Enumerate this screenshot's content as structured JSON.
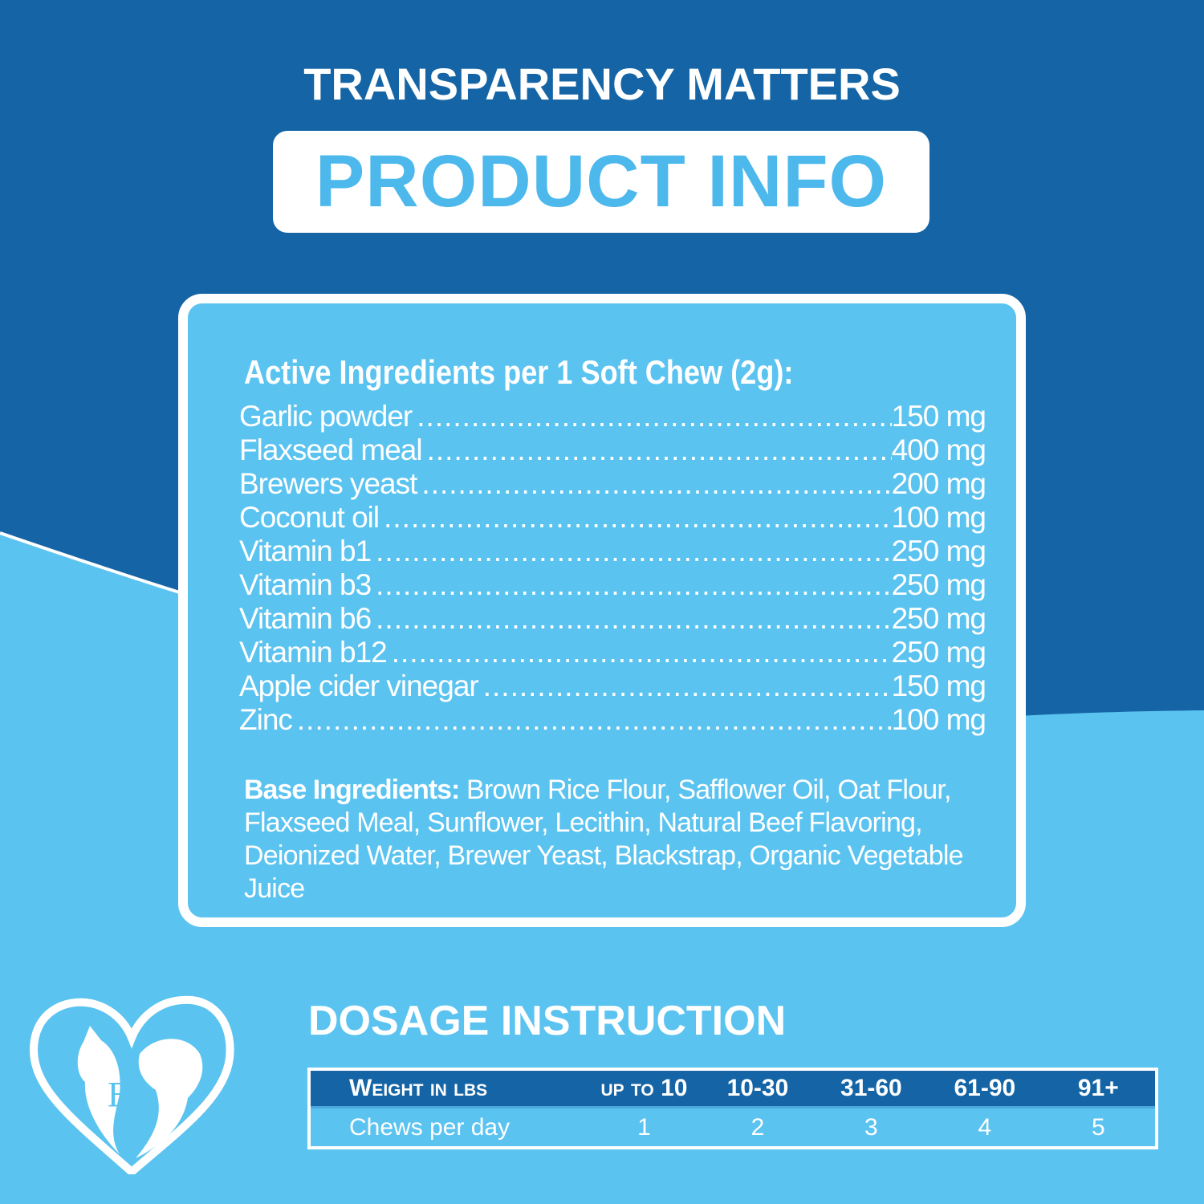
{
  "colors": {
    "dark_blue": "#1565a6",
    "light_blue": "#5bc3f0",
    "accent_text": "#4cb8ec",
    "white": "#ffffff"
  },
  "header": {
    "title": "TRANSPARENCY MATTERS",
    "badge": "PRODUCT INFO"
  },
  "active": {
    "heading": "Active Ingredients per 1 Soft Chew (2g):",
    "items": [
      {
        "name": "Garlic powder",
        "amount": "150 mg"
      },
      {
        "name": "Flaxseed meal",
        "amount": "400 mg"
      },
      {
        "name": "Brewers yeast",
        "amount": "200 mg"
      },
      {
        "name": "Coconut oil",
        "amount": "100 mg"
      },
      {
        "name": "Vitamin b1",
        "amount": "250 mg"
      },
      {
        "name": "Vitamin b3",
        "amount": "250 mg"
      },
      {
        "name": "Vitamin b6",
        "amount": "250 mg"
      },
      {
        "name": "Vitamin b12",
        "amount": "250 mg"
      },
      {
        "name": "Apple cider vinegar",
        "amount": "150 mg"
      },
      {
        "name": "Zinc",
        "amount": "100 mg"
      }
    ]
  },
  "base": {
    "label": "Base Ingredients:",
    "text": " Brown Rice Flour, Safflower Oil, Oat Flour, Flaxseed Meal, Sunflower, Lecithin, Natural Beef Flavoring, Deionized Water, Brewer Yeast, Blackstrap, Organic Vegetable Juice"
  },
  "dosage": {
    "title": "DOSAGE INSTRUCTION",
    "header": [
      "Weight in lbs",
      "up to 10",
      "10-30",
      "31-60",
      "61-90",
      "91+"
    ],
    "row": [
      "Chews per day",
      "1",
      "2",
      "3",
      "4",
      "5"
    ]
  },
  "logo": {
    "text": "BP",
    "icon": "heart-cat-dog-logo"
  }
}
